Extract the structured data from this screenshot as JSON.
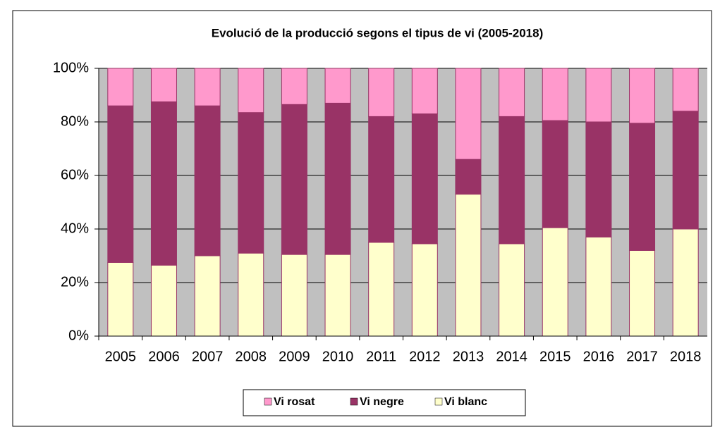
{
  "chart_data": {
    "type": "stacked_bar_100",
    "title": "Evolució de la producció segons el tipus de vi (2005-2018)",
    "categories": [
      "2005",
      "2006",
      "2007",
      "2008",
      "2009",
      "2010",
      "2011",
      "2012",
      "2013",
      "2014",
      "2015",
      "2016",
      "2017",
      "2018"
    ],
    "series": [
      {
        "name": "Vi blanc",
        "color": "#ffffcc",
        "values": [
          27.5,
          26.5,
          30,
          31,
          30.5,
          30.5,
          35,
          34.5,
          53,
          34.5,
          40.5,
          37,
          32,
          40
        ]
      },
      {
        "name": "Vi negre",
        "color": "#993366",
        "values": [
          58.5,
          61,
          56,
          52.5,
          56,
          56.5,
          47,
          48.5,
          13,
          47.5,
          40,
          43,
          47.5,
          44
        ]
      },
      {
        "name": "Vi rosat",
        "color": "#ff99cc",
        "values": [
          14,
          12.5,
          14,
          16.5,
          13.5,
          13,
          18,
          17,
          34,
          18,
          19.5,
          20,
          20.5,
          16
        ]
      }
    ],
    "ylim": [
      0,
      100
    ],
    "yticks": [
      {
        "value": 0,
        "label": "0%"
      },
      {
        "value": 20,
        "label": "20%"
      },
      {
        "value": 40,
        "label": "40%"
      },
      {
        "value": 60,
        "label": "60%"
      },
      {
        "value": 80,
        "label": "80%"
      },
      {
        "value": 100,
        "label": "100%"
      }
    ],
    "grid": true
  }
}
